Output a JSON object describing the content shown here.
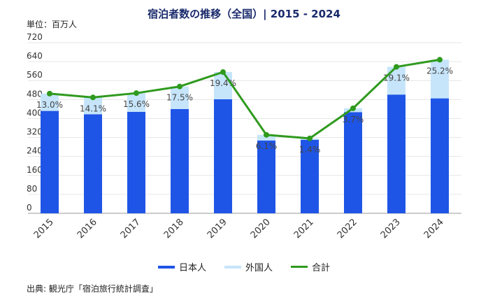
{
  "chart_data": {
    "type": "bar",
    "title": "宿泊者数の推移（全国）| 2015 - 2024",
    "unit_label": "単位：百万人",
    "categories": [
      "2015",
      "2016",
      "2017",
      "2018",
      "2019",
      "2020",
      "2021",
      "2022",
      "2023",
      "2024"
    ],
    "series": [
      {
        "name": "日本人",
        "type": "bar",
        "stacked": true,
        "color": "#1f55e6",
        "values": [
          432,
          418,
          428,
          440,
          481,
          307,
          310,
          427,
          501,
          485
        ]
      },
      {
        "name": "外国人",
        "type": "bar",
        "stacked": true,
        "color": "#c6e5fb",
        "values": [
          73,
          71,
          79,
          95,
          115,
          24,
          6,
          16,
          117,
          163
        ]
      },
      {
        "name": "合計",
        "type": "line",
        "color": "#2f9a1e",
        "values": [
          505,
          489,
          507,
          535,
          596,
          331,
          316,
          443,
          618,
          648
        ]
      }
    ],
    "data_labels": [
      "13.0%",
      "14.1%",
      "15.6%",
      "17.5%",
      "19.4%",
      "6.1%",
      "1.4%",
      "3.7%",
      "19.1%",
      "25.2%"
    ],
    "y_ticks": [
      0,
      80,
      160,
      240,
      320,
      400,
      480,
      560,
      640,
      720
    ],
    "ylim": [
      0,
      720
    ],
    "grid": true,
    "legend_position": "bottom"
  },
  "legend": [
    {
      "label": "日本人",
      "color": "#1f55e6",
      "kind": "bar"
    },
    {
      "label": "外国人",
      "color": "#c6e5fb",
      "kind": "bar"
    },
    {
      "label": "合計",
      "color": "#2f9a1e",
      "kind": "line"
    }
  ],
  "source": "出典: 観光庁「宿泊旅行統計調査」"
}
